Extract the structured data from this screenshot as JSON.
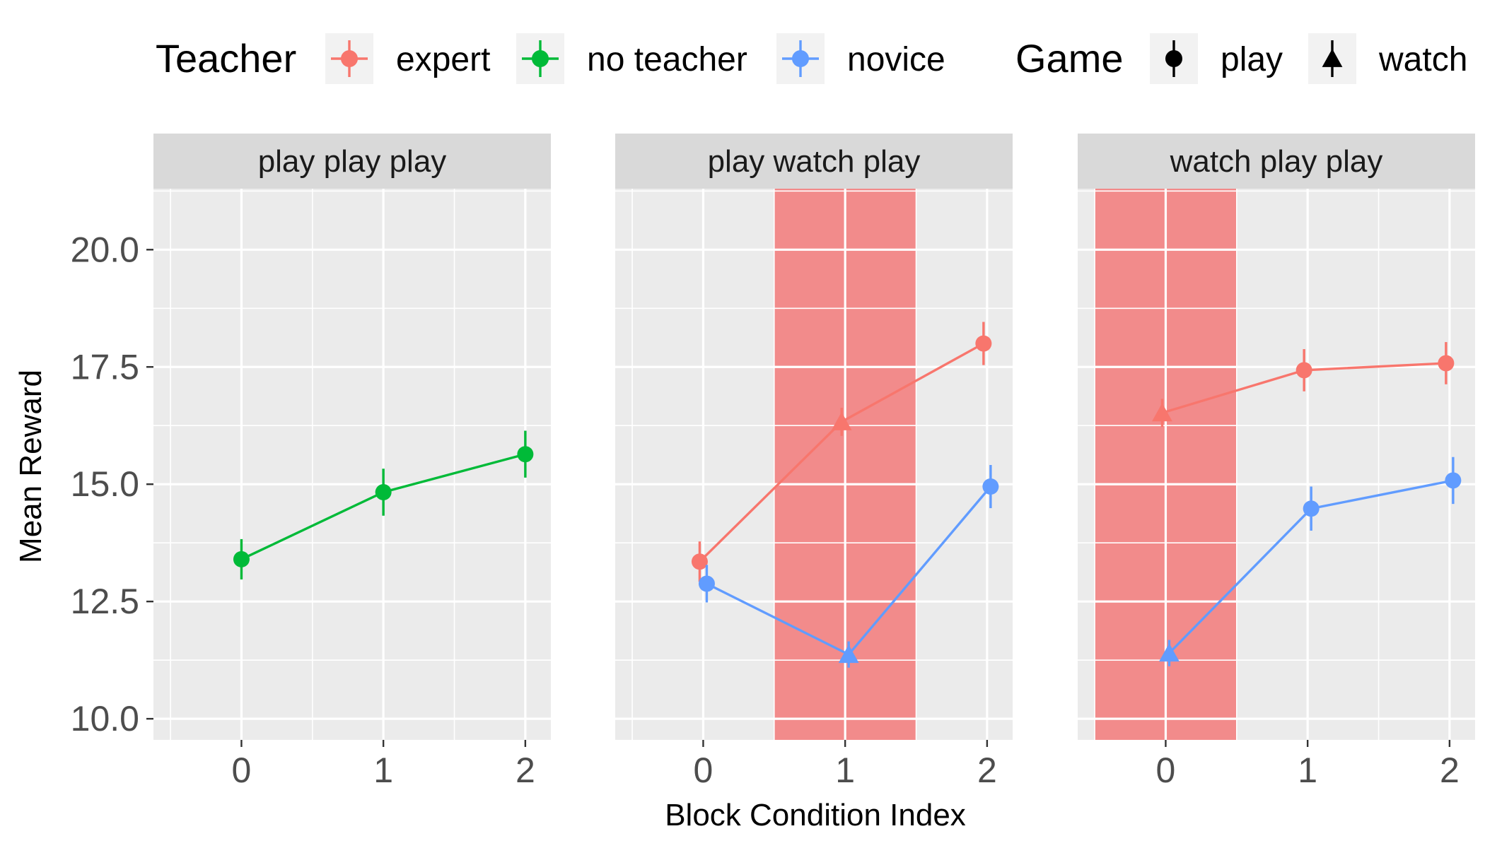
{
  "chart_data": {
    "type": "line",
    "xlabel": "Block Condition Index",
    "ylabel": "Mean Reward",
    "ylim": [
      9.55,
      21.3
    ],
    "xlim": [
      -0.62,
      2.18
    ],
    "yticks": [
      10.0,
      12.5,
      15.0,
      17.5,
      20.0
    ],
    "ytick_labels": [
      "10.0",
      "12.5",
      "15.0",
      "17.5",
      "20.0"
    ],
    "xticks": [
      0,
      1,
      2
    ],
    "xtick_labels": [
      "0",
      "1",
      "2"
    ],
    "grid": true,
    "legend_position": "top",
    "legend": {
      "teacher_title": "Teacher",
      "teacher_items": [
        {
          "label": "expert",
          "color": "#F8766D"
        },
        {
          "label": "no teacher",
          "color": "#00BA38"
        },
        {
          "label": "novice",
          "color": "#619CFF"
        }
      ],
      "game_title": "Game",
      "game_items": [
        {
          "label": "play",
          "shape": "circle"
        },
        {
          "label": "watch",
          "shape": "triangle"
        }
      ]
    },
    "colors": {
      "expert": "#F8766D",
      "no teacher": "#00BA38",
      "novice": "#619CFF",
      "highlight": "#F28B8B"
    },
    "panels": [
      {
        "title": "play play play",
        "highlight_block": null,
        "series": [
          {
            "teacher": "no teacher",
            "x": [
              0,
              1,
              2
            ],
            "y": [
              13.4,
              14.83,
              15.64
            ],
            "err": [
              0.43,
              0.5,
              0.5
            ],
            "game": [
              "play",
              "play",
              "play"
            ]
          }
        ]
      },
      {
        "title": "play watch play",
        "highlight_block": 1,
        "series": [
          {
            "teacher": "expert",
            "x": [
              0,
              1,
              2
            ],
            "y": [
              13.35,
              16.33,
              18.0
            ],
            "err": [
              0.43,
              0.3,
              0.46
            ],
            "game": [
              "play",
              "watch",
              "play"
            ]
          },
          {
            "teacher": "novice",
            "x": [
              0,
              1,
              2
            ],
            "y": [
              12.88,
              11.37,
              14.95
            ],
            "err": [
              0.4,
              0.28,
              0.46
            ],
            "game": [
              "play",
              "watch",
              "play"
            ]
          }
        ]
      },
      {
        "title": "watch play play",
        "highlight_block": 0,
        "series": [
          {
            "teacher": "expert",
            "x": [
              0,
              1,
              2
            ],
            "y": [
              16.52,
              17.43,
              17.58
            ],
            "err": [
              0.3,
              0.45,
              0.45
            ],
            "game": [
              "watch",
              "play",
              "play"
            ]
          },
          {
            "teacher": "novice",
            "x": [
              0,
              1,
              2
            ],
            "y": [
              11.4,
              14.48,
              15.08
            ],
            "err": [
              0.28,
              0.47,
              0.5
            ],
            "game": [
              "watch",
              "play",
              "play"
            ]
          }
        ]
      }
    ]
  }
}
